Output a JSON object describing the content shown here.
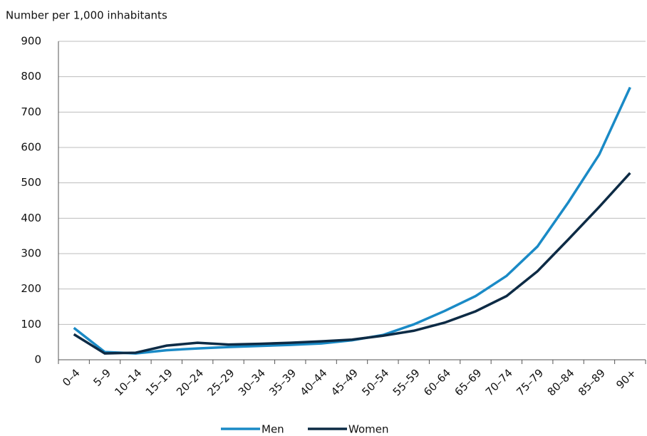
{
  "chart_data": {
    "type": "line",
    "y_label": "Number per 1,000 inhabitants",
    "categories": [
      "0–4",
      "5–9",
      "10–14",
      "15–19",
      "20–24",
      "25–29",
      "30–34",
      "35–39",
      "40–44",
      "45–49",
      "50–54",
      "55–59",
      "60–64",
      "65–69",
      "70–74",
      "75–79",
      "80–84",
      "85–89",
      "90+"
    ],
    "series": [
      {
        "name": "Men",
        "color": "#1a8ac6",
        "values": [
          90,
          22,
          18,
          27,
          32,
          36,
          39,
          42,
          46,
          55,
          70,
          100,
          138,
          180,
          237,
          320,
          445,
          580,
          770
        ]
      },
      {
        "name": "Women",
        "color": "#0d2b45",
        "values": [
          72,
          18,
          20,
          40,
          48,
          43,
          45,
          48,
          52,
          57,
          68,
          82,
          105,
          137,
          180,
          250,
          340,
          432,
          528
        ]
      }
    ],
    "ylim": [
      0,
      900
    ],
    "yticks": [
      0,
      100,
      200,
      300,
      400,
      500,
      600,
      700,
      800,
      900
    ],
    "grid": true,
    "legend": "bottom"
  }
}
